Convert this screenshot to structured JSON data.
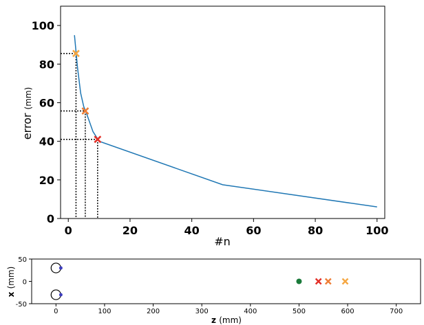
{
  "chart_data": [
    {
      "type": "line",
      "xlabel": "#n",
      "ylabel": "error",
      "ylabel_unit": "(mm)",
      "xlim": [
        -2.5,
        102.5
      ],
      "ylim": [
        0,
        110
      ],
      "xticks": [
        0,
        20,
        40,
        60,
        80,
        100
      ],
      "yticks": [
        0,
        20,
        40,
        60,
        80,
        100
      ],
      "grid": false,
      "line_color": "#1f77b4",
      "series": [
        {
          "x": [
            2,
            3,
            4,
            5,
            6,
            8,
            10,
            50,
            100
          ],
          "y": [
            95,
            78,
            65,
            58,
            54,
            45,
            40,
            17.5,
            6
          ]
        }
      ],
      "markers": [
        {
          "x": 2.5,
          "y": 85.5,
          "symbol": "X",
          "color": "#f5a742"
        },
        {
          "x": 5.5,
          "y": 55.7,
          "symbol": "X",
          "color": "#ee7d35"
        },
        {
          "x": 9.5,
          "y": 41,
          "symbol": "X",
          "color": "#e32f27"
        }
      ]
    },
    {
      "type": "scatter",
      "xlabel": "z",
      "xlabel_unit": "(mm)",
      "ylabel": "x",
      "ylabel_unit": "(mm)",
      "xlim": [
        -50,
        750
      ],
      "ylim": [
        -50,
        50
      ],
      "xticks": [
        0,
        100,
        200,
        300,
        400,
        500,
        600,
        700
      ],
      "yticks": [
        -50,
        0,
        50
      ],
      "grid": false,
      "circles": [
        {
          "x": 0,
          "y": 30,
          "r": 10
        },
        {
          "x": 0,
          "y": -30,
          "r": 10
        }
      ],
      "points": [
        {
          "x": 10,
          "y": 30,
          "marker": "dot",
          "color": "#3f3fbf"
        },
        {
          "x": 10,
          "y": -30,
          "marker": "dot",
          "color": "#3f3fbf"
        },
        {
          "x": 500,
          "y": 0,
          "marker": "dot",
          "color": "#1a7a3a"
        },
        {
          "x": 540,
          "y": 0,
          "marker": "X",
          "color": "#e32f27"
        },
        {
          "x": 560,
          "y": 0,
          "marker": "X",
          "color": "#ee7d35"
        },
        {
          "x": 595,
          "y": 0,
          "marker": "X",
          "color": "#f5a742"
        }
      ]
    }
  ]
}
